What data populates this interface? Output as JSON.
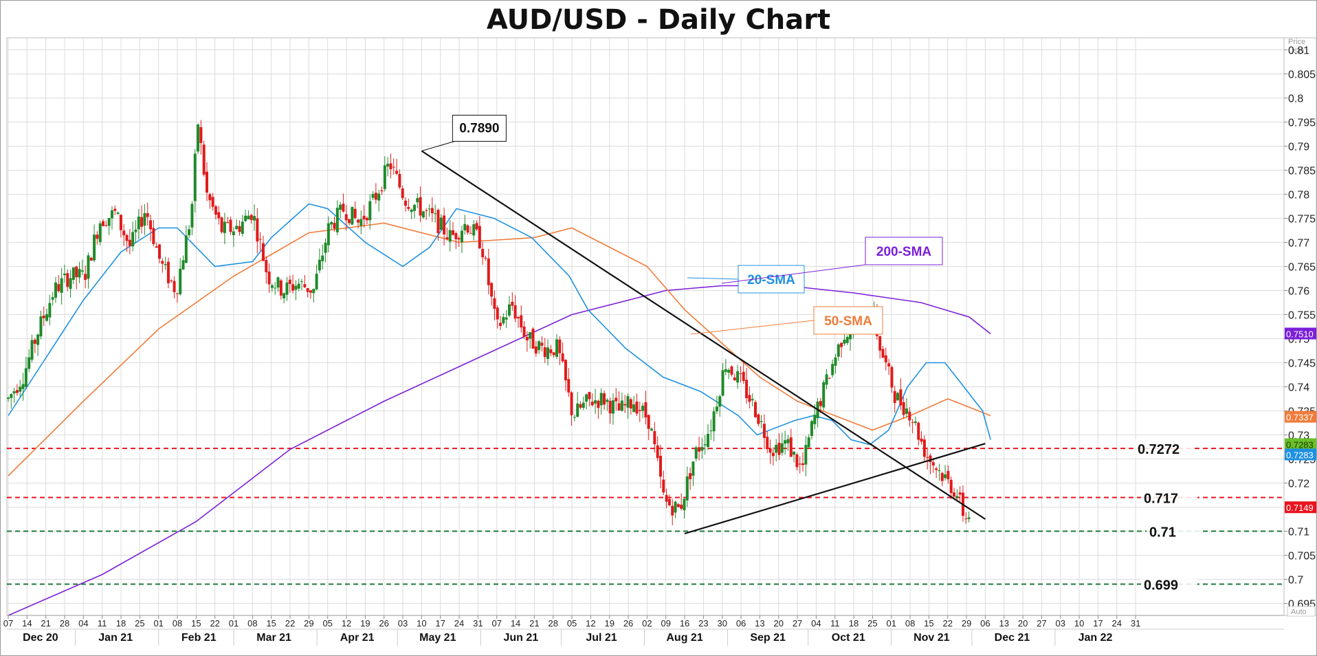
{
  "chart_data": {
    "type": "candlestick",
    "title": "AUD/USD - Daily Chart",
    "price_unit_label": [
      "Price",
      "USD"
    ],
    "ylim": [
      0.6925,
      0.8125
    ],
    "yticks": [
      0.81,
      0.805,
      0.8,
      0.795,
      0.79,
      0.785,
      0.78,
      0.775,
      0.77,
      0.765,
      0.76,
      0.755,
      0.75,
      0.745,
      0.74,
      0.735,
      0.73,
      0.725,
      0.72,
      0.715,
      0.71,
      0.705,
      0.7,
      0.695
    ],
    "ytick_labels": [
      "0.81",
      "0.805",
      "0.8",
      "0.795",
      "0.79",
      "0.785",
      "0.78",
      "0.775",
      "0.77",
      "0.765",
      "0.76",
      "0.755",
      "0.75",
      "0.745",
      "0.74",
      "0.735",
      "0.73",
      "0.725",
      "0.72",
      "0.715",
      "0.71",
      "0.705",
      "0.7",
      "0.695"
    ],
    "x_tick_labels": [
      "07",
      "14",
      "21",
      "28",
      "04",
      "11",
      "18",
      "25",
      "01",
      "08",
      "15",
      "22",
      "01",
      "08",
      "15",
      "22",
      "29",
      "05",
      "12",
      "19",
      "26",
      "03",
      "10",
      "17",
      "24",
      "31",
      "07",
      "14",
      "21",
      "28",
      "05",
      "12",
      "19",
      "26",
      "02",
      "09",
      "16",
      "23",
      "30",
      "06",
      "13",
      "20",
      "27",
      "04",
      "11",
      "18",
      "25",
      "01",
      "08",
      "15",
      "22",
      "29",
      "06",
      "13",
      "20",
      "27",
      "03",
      "10",
      "17",
      "24",
      "31"
    ],
    "month_labels": [
      "Dec 20",
      "Jan 21",
      "Feb 21",
      "Mar 21",
      "Apr 21",
      "May 21",
      "Jun 21",
      "Jul 21",
      "Aug 21",
      "Sep 21",
      "Oct 21",
      "Nov 21",
      "Dec 21",
      "Jan 22"
    ],
    "autoscale_label": "Auto",
    "horizontal_levels": [
      {
        "label": "0.7272",
        "value": 0.7272,
        "color": "#e8141e"
      },
      {
        "label": "0.717",
        "value": 0.717,
        "color": "#e8141e"
      },
      {
        "label": "0.71",
        "value": 0.71,
        "color": "#1a7a3a"
      },
      {
        "label": "0.699",
        "value": 0.699,
        "color": "#1a7a3a"
      }
    ],
    "price_badges": [
      {
        "label": "0.7510",
        "value": 0.751,
        "color": "#7b1fd8"
      },
      {
        "label": "0.7337",
        "value": 0.7337,
        "color": "#f07c3a"
      },
      {
        "label": "0.7283",
        "value": 0.7283,
        "color": "#6abf2a"
      },
      {
        "label": "0.7283",
        "value": 0.7283,
        "color": "#1e90e0"
      },
      {
        "label": "0.7149",
        "value": 0.7149,
        "color": "#e8141e"
      }
    ],
    "annotations": [
      {
        "label": "0.7890",
        "value": 0.789,
        "date": "2021-05-10"
      },
      {
        "label": "20-SMA",
        "color": "#1e90e0"
      },
      {
        "label": "50-SMA",
        "color": "#f07c3a"
      },
      {
        "label": "200-SMA",
        "color": "#7b1fd8"
      }
    ],
    "trendlines": [
      {
        "from": [
          "2021-05-10",
          0.789
        ],
        "to": [
          "2021-12-06",
          0.7125
        ]
      },
      {
        "from": [
          "2021-08-16",
          0.7095
        ],
        "to": [
          "2021-12-06",
          0.7282
        ]
      }
    ],
    "sma_20": [
      [
        0,
        0.734
      ],
      [
        14,
        0.746
      ],
      [
        28,
        0.758
      ],
      [
        42,
        0.768
      ],
      [
        56,
        0.773
      ],
      [
        63,
        0.773
      ],
      [
        77,
        0.765
      ],
      [
        91,
        0.766
      ],
      [
        98,
        0.771
      ],
      [
        112,
        0.778
      ],
      [
        119,
        0.777
      ],
      [
        133,
        0.77
      ],
      [
        147,
        0.765
      ],
      [
        157,
        0.769
      ],
      [
        167,
        0.777
      ],
      [
        181,
        0.775
      ],
      [
        195,
        0.771
      ],
      [
        209,
        0.763
      ],
      [
        216,
        0.756
      ],
      [
        230,
        0.748
      ],
      [
        244,
        0.742
      ],
      [
        258,
        0.739
      ],
      [
        272,
        0.734
      ],
      [
        279,
        0.73
      ],
      [
        293,
        0.733
      ],
      [
        300,
        0.734
      ],
      [
        307,
        0.733
      ],
      [
        314,
        0.729
      ],
      [
        321,
        0.728
      ],
      [
        328,
        0.731
      ],
      [
        335,
        0.74
      ],
      [
        342,
        0.745
      ],
      [
        349,
        0.745
      ],
      [
        356,
        0.74
      ],
      [
        363,
        0.735
      ],
      [
        366,
        0.729
      ]
    ],
    "sma_50": [
      [
        0,
        0.7215
      ],
      [
        28,
        0.737
      ],
      [
        56,
        0.752
      ],
      [
        84,
        0.763
      ],
      [
        112,
        0.772
      ],
      [
        140,
        0.774
      ],
      [
        168,
        0.77
      ],
      [
        196,
        0.771
      ],
      [
        210,
        0.773
      ],
      [
        224,
        0.769
      ],
      [
        238,
        0.765
      ],
      [
        252,
        0.756
      ],
      [
        266,
        0.749
      ],
      [
        280,
        0.742
      ],
      [
        294,
        0.737
      ],
      [
        308,
        0.734
      ],
      [
        322,
        0.731
      ],
      [
        336,
        0.734
      ],
      [
        350,
        0.7375
      ],
      [
        366,
        0.734
      ]
    ],
    "sma_200": [
      [
        0,
        0.6925
      ],
      [
        35,
        0.701
      ],
      [
        70,
        0.712
      ],
      [
        105,
        0.727
      ],
      [
        140,
        0.737
      ],
      [
        175,
        0.746
      ],
      [
        210,
        0.755
      ],
      [
        245,
        0.76
      ],
      [
        266,
        0.761
      ],
      [
        290,
        0.761
      ],
      [
        315,
        0.7595
      ],
      [
        340,
        0.7575
      ],
      [
        358,
        0.7545
      ],
      [
        366,
        0.751
      ]
    ],
    "candles_anchor_path": [
      [
        0,
        0.7375
      ],
      [
        7,
        0.7425
      ],
      [
        14,
        0.752
      ],
      [
        21,
        0.76
      ],
      [
        28,
        0.763
      ],
      [
        35,
        0.763
      ],
      [
        42,
        0.7745
      ],
      [
        49,
        0.776
      ],
      [
        56,
        0.769
      ],
      [
        63,
        0.777
      ],
      [
        70,
        0.7655
      ],
      [
        77,
        0.76
      ],
      [
        84,
        0.776
      ],
      [
        87,
        0.795
      ],
      [
        91,
        0.78
      ],
      [
        98,
        0.7725
      ],
      [
        105,
        0.773
      ],
      [
        112,
        0.7765
      ],
      [
        119,
        0.763
      ],
      [
        126,
        0.76
      ],
      [
        133,
        0.7615
      ],
      [
        140,
        0.76
      ],
      [
        147,
        0.773
      ],
      [
        154,
        0.777
      ],
      [
        161,
        0.774
      ],
      [
        168,
        0.779
      ],
      [
        175,
        0.7865
      ],
      [
        182,
        0.779
      ],
      [
        189,
        0.777
      ],
      [
        196,
        0.7745
      ],
      [
        203,
        0.771
      ],
      [
        210,
        0.774
      ],
      [
        217,
        0.77
      ],
      [
        224,
        0.752
      ],
      [
        231,
        0.757
      ],
      [
        238,
        0.75
      ],
      [
        245,
        0.748
      ],
      [
        252,
        0.748
      ],
      [
        259,
        0.734
      ],
      [
        266,
        0.737
      ],
      [
        273,
        0.7375
      ],
      [
        280,
        0.735
      ],
      [
        287,
        0.737
      ],
      [
        294,
        0.733
      ],
      [
        301,
        0.716
      ],
      [
        308,
        0.7145
      ],
      [
        315,
        0.726
      ],
      [
        322,
        0.7315
      ],
      [
        329,
        0.745
      ],
      [
        336,
        0.741
      ],
      [
        343,
        0.735
      ],
      [
        350,
        0.727
      ],
      [
        357,
        0.7285
      ],
      [
        364,
        0.7225
      ],
      [
        369,
        0.7325
      ],
      [
        376,
        0.742
      ],
      [
        383,
        0.751
      ],
      [
        390,
        0.753
      ],
      [
        397,
        0.7545
      ],
      [
        400,
        0.748
      ],
      [
        407,
        0.738
      ],
      [
        414,
        0.7345
      ],
      [
        421,
        0.726
      ],
      [
        428,
        0.722
      ],
      [
        435,
        0.718
      ],
      [
        439,
        0.7125
      ],
      [
        442,
        0.7149
      ]
    ]
  }
}
